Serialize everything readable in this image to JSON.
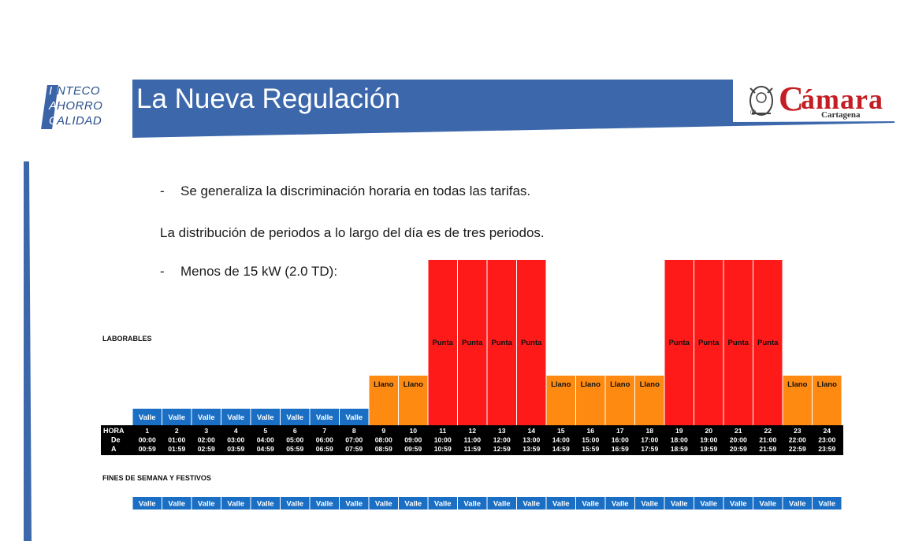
{
  "logo_left": {
    "lines": [
      [
        "I",
        "NTECO"
      ],
      [
        "A",
        "HORRO"
      ],
      [
        "C",
        "ALIDAD"
      ]
    ]
  },
  "header": {
    "title": "La Nueva Regulación"
  },
  "logo_right": {
    "letter": "C",
    "word": "ámara",
    "sub": "Cartagena",
    "reg": "®"
  },
  "content": {
    "bullet1_dash": "-",
    "bullet1": "Se generaliza la discriminación horaria en todas las tarifas.",
    "paragraph": "La distribución de periodos a lo largo del día es de tres periodos.",
    "bullet2_dash": "-",
    "bullet2": "Menos de 15 kW (2.0 TD):"
  },
  "colors": {
    "valle": "#1a6fc4",
    "llano": "#ff8a12",
    "punta": "#ff1a1a",
    "header_band": "#3c68ab",
    "row_bg": "#000000"
  },
  "chart_data": {
    "type": "table",
    "weekday_label": "LABORABLES",
    "weekend_label": "FINES DE SEMANA Y FESTIVOS",
    "row_headers": [
      "HORA",
      "De",
      "A"
    ],
    "hours": [
      "1",
      "2",
      "3",
      "4",
      "5",
      "6",
      "7",
      "8",
      "9",
      "10",
      "11",
      "12",
      "13",
      "14",
      "15",
      "16",
      "17",
      "18",
      "19",
      "20",
      "21",
      "22",
      "23",
      "24"
    ],
    "from": [
      "00:00",
      "01:00",
      "02:00",
      "03:00",
      "04:00",
      "05:00",
      "06:00",
      "07:00",
      "08:00",
      "09:00",
      "10:00",
      "11:00",
      "12:00",
      "13:00",
      "14:00",
      "15:00",
      "16:00",
      "17:00",
      "18:00",
      "19:00",
      "20:00",
      "21:00",
      "22:00",
      "23:00"
    ],
    "to": [
      "00:59",
      "01:59",
      "02:59",
      "03:59",
      "04:59",
      "05:59",
      "06:59",
      "07:59",
      "08:59",
      "09:59",
      "10:59",
      "11:59",
      "12:59",
      "13:59",
      "14:59",
      "15:59",
      "16:59",
      "17:59",
      "18:59",
      "19:59",
      "20:59",
      "21:59",
      "22:59",
      "23:59"
    ],
    "weekday": [
      "Valle",
      "Valle",
      "Valle",
      "Valle",
      "Valle",
      "Valle",
      "Valle",
      "Valle",
      "Llano",
      "Llano",
      "Punta",
      "Punta",
      "Punta",
      "Punta",
      "Llano",
      "Llano",
      "Llano",
      "Llano",
      "Punta",
      "Punta",
      "Punta",
      "Punta",
      "Llano",
      "Llano"
    ],
    "weekend": [
      "Valle",
      "Valle",
      "Valle",
      "Valle",
      "Valle",
      "Valle",
      "Valle",
      "Valle",
      "Valle",
      "Valle",
      "Valle",
      "Valle",
      "Valle",
      "Valle",
      "Valle",
      "Valle",
      "Valle",
      "Valle",
      "Valle",
      "Valle",
      "Valle",
      "Valle",
      "Valle",
      "Valle"
    ],
    "levels": {
      "Valle": 1,
      "Llano": 3,
      "Punta": 10
    }
  }
}
